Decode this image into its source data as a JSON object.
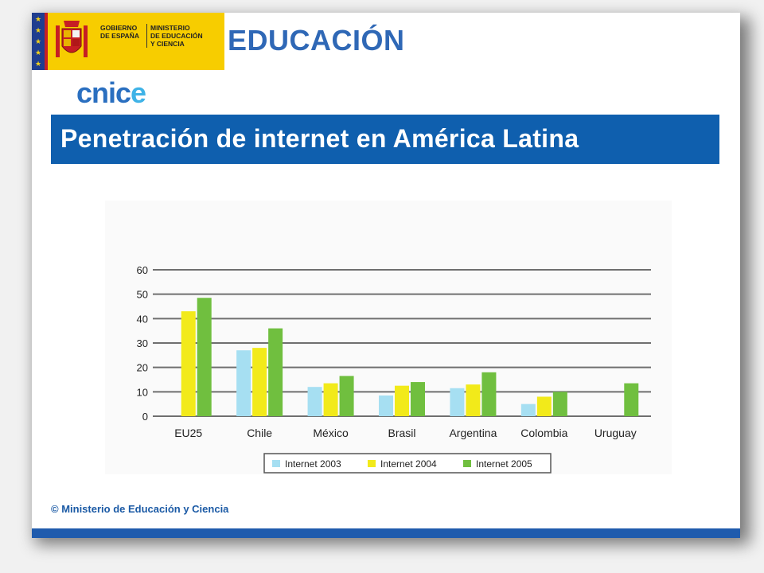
{
  "header": {
    "gov_text_left": [
      "GOBIERNO",
      "DE ESPAÑA"
    ],
    "gov_text_right": [
      "MINISTERIO",
      "DE EDUCACIÓN",
      "Y CIENCIA"
    ],
    "brand_word": "EDUCACIÓN",
    "cnice_main": "cnic",
    "cnice_tail": "e"
  },
  "title": "Penetración de internet en América Latina",
  "footer": "© Ministerio de Educación y Ciencia",
  "colors": {
    "title_bar": "#0f5fae",
    "footer_bar": "#1f5bad",
    "gov_yellow": "#f7cd00"
  },
  "chart_data": {
    "type": "bar",
    "categories": [
      "EU25",
      "Chile",
      "México",
      "Brasil",
      "Argentina",
      "Colombia",
      "Uruguay"
    ],
    "series": [
      {
        "name": "Internet 2003",
        "color": "#a6dff2",
        "values": [
          null,
          27,
          12,
          8.5,
          11.5,
          5,
          null
        ]
      },
      {
        "name": "Internet 2004",
        "color": "#f2ea1a",
        "values": [
          43,
          28,
          13.5,
          12.5,
          13,
          8,
          null
        ]
      },
      {
        "name": "Internet 2005",
        "color": "#70bf3f",
        "values": [
          48.5,
          36,
          16.5,
          14,
          18,
          10,
          13.5
        ]
      }
    ],
    "yticks": [
      0,
      10,
      20,
      30,
      40,
      50,
      60
    ],
    "ylim": [
      0,
      60
    ],
    "grid": true,
    "legend_position": "bottom"
  }
}
